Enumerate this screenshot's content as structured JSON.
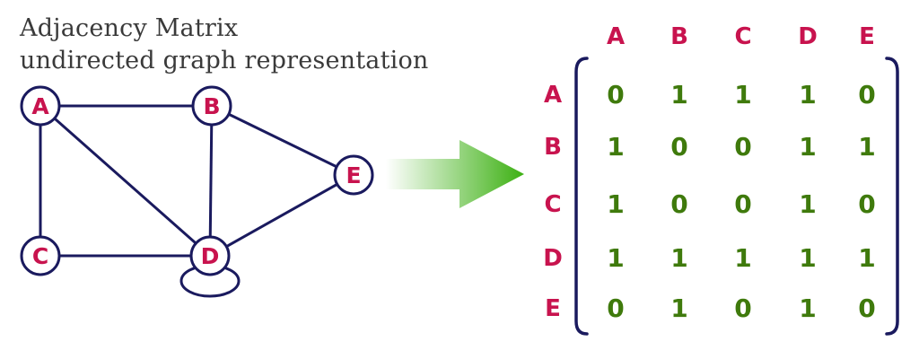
{
  "title_lines": [
    "Adjacency Matrix",
    "undirected graph representation"
  ],
  "colors": {
    "node_label": "#c8134e",
    "node_stroke": "#1a1a5e",
    "edge": "#1a1a5e",
    "matrix_value": "#3f7a0c",
    "matrix_header": "#c8134e",
    "bracket": "#1a1a5e",
    "arrow_start": "#ffffff",
    "arrow_end": "#3cb012"
  },
  "graph": {
    "nodes": [
      "A",
      "B",
      "C",
      "D",
      "E"
    ],
    "edges": [
      [
        "A",
        "B"
      ],
      [
        "A",
        "C"
      ],
      [
        "A",
        "D"
      ],
      [
        "B",
        "D"
      ],
      [
        "B",
        "E"
      ],
      [
        "C",
        "D"
      ],
      [
        "D",
        "E"
      ],
      [
        "D",
        "D"
      ]
    ]
  },
  "matrix": {
    "col_headers": [
      "A",
      "B",
      "C",
      "D",
      "E"
    ],
    "row_headers": [
      "A",
      "B",
      "C",
      "D",
      "E"
    ],
    "rows": [
      [
        "0",
        "1",
        "1",
        "1",
        "0"
      ],
      [
        "1",
        "0",
        "0",
        "1",
        "1"
      ],
      [
        "1",
        "0",
        "0",
        "1",
        "0"
      ],
      [
        "1",
        "1",
        "1",
        "1",
        "1"
      ],
      [
        "0",
        "1",
        "0",
        "1",
        "0"
      ]
    ]
  }
}
